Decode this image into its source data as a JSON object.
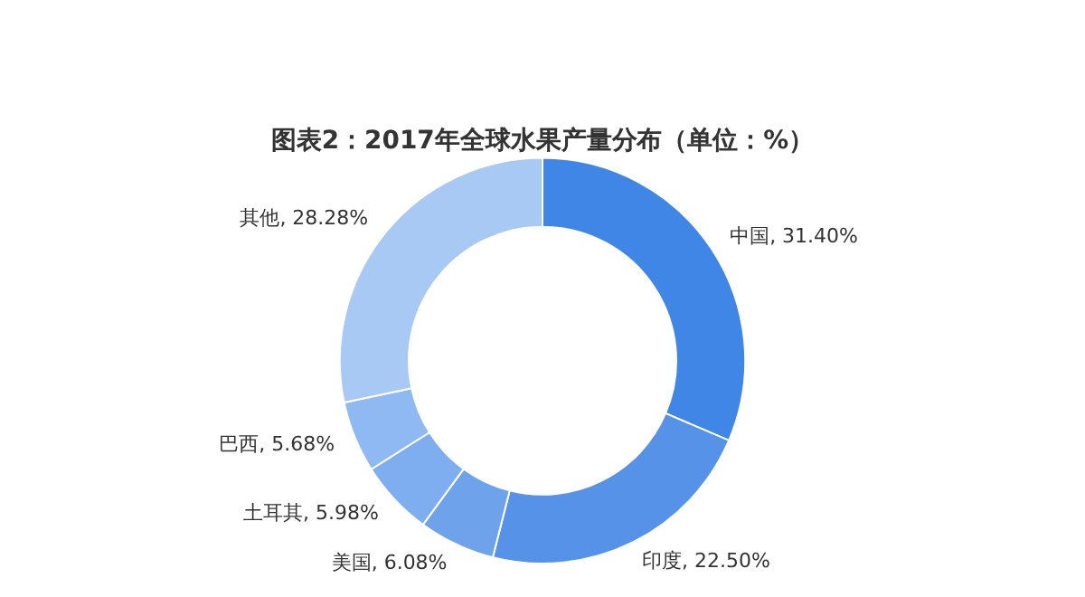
{
  "chart_data": {
    "type": "donut",
    "title": "图表2：2017年全球水果产量分布（单位：%）",
    "categories": [
      "中国",
      "印度",
      "美国",
      "土耳其",
      "巴西",
      "其他"
    ],
    "values": [
      31.4,
      22.5,
      6.08,
      5.98,
      5.68,
      28.28
    ],
    "value_labels": [
      "31.40%",
      "22.50%",
      "6.08%",
      "5.98%",
      "5.68%",
      "28.28%"
    ],
    "colors": [
      "#3f86e6",
      "#5592e8",
      "#6ea3ec",
      "#7eaef0",
      "#8fb9f2",
      "#a9c9f5"
    ],
    "legend": false
  }
}
